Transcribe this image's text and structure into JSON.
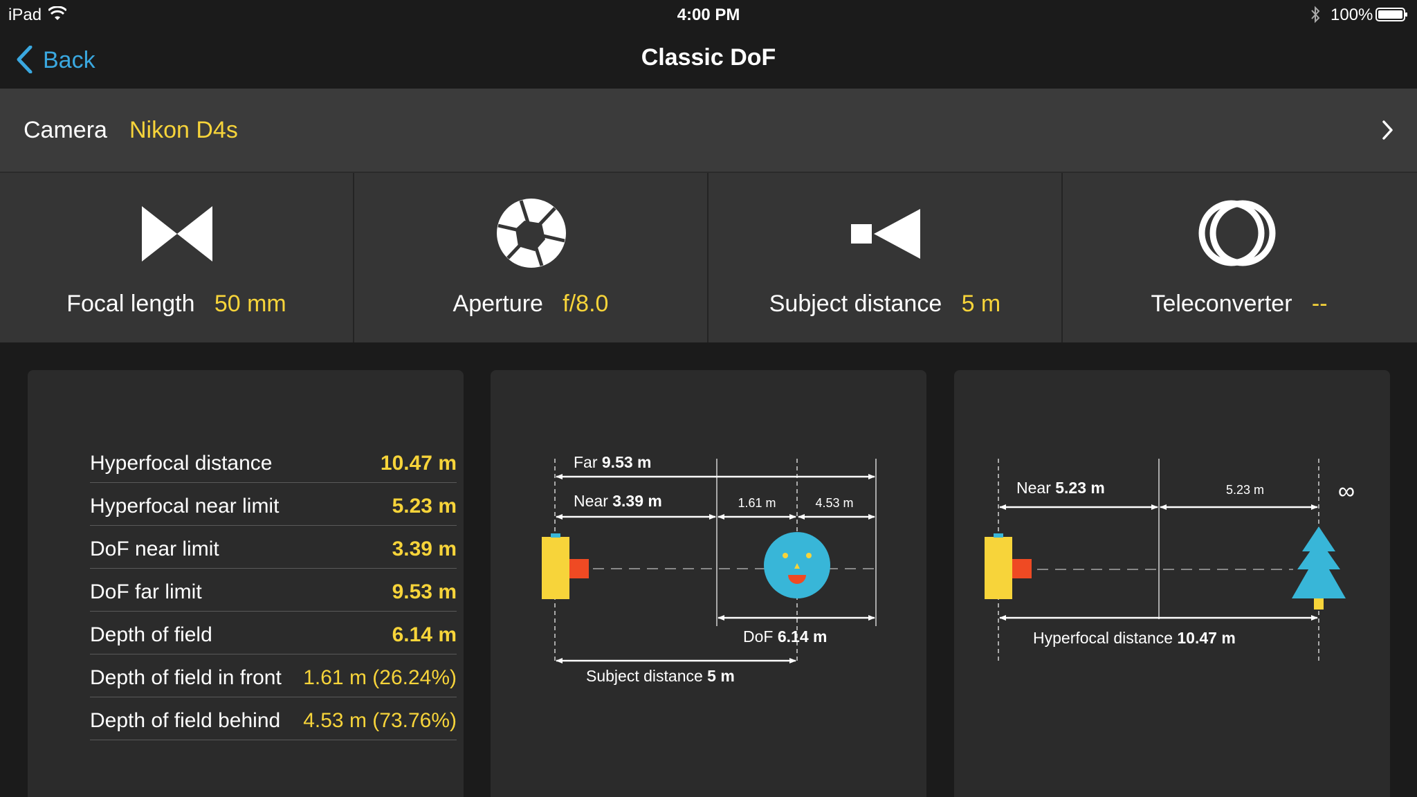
{
  "status_bar": {
    "device": "iPad",
    "time": "4:00 PM",
    "battery": "100%",
    "icons": [
      "wifi-icon",
      "bluetooth-icon",
      "battery-icon"
    ]
  },
  "nav": {
    "back_label": "Back",
    "title": "Classic DoF"
  },
  "camera": {
    "label": "Camera",
    "value": "Nikon D4s"
  },
  "params": [
    {
      "label": "Focal length",
      "value": "50 mm",
      "icon": "focal-length-icon"
    },
    {
      "label": "Aperture",
      "value": "f/8.0",
      "icon": "aperture-icon"
    },
    {
      "label": "Subject distance",
      "value": "5 m",
      "icon": "subject-distance-icon"
    },
    {
      "label": "Teleconverter",
      "value": "--",
      "icon": "teleconverter-icon"
    }
  ],
  "results": [
    {
      "label": "Hyperfocal distance",
      "value": "10.47 m"
    },
    {
      "label": "Hyperfocal near limit",
      "value": "5.23 m"
    },
    {
      "label": "DoF near limit",
      "value": "3.39 m"
    },
    {
      "label": "DoF far limit",
      "value": "9.53 m"
    },
    {
      "label": "Depth of field",
      "value": "6.14 m"
    },
    {
      "label": "Depth of field in front",
      "value": "1.61 m (26.24%)"
    },
    {
      "label": "Depth of field behind",
      "value": "4.53 m (73.76%)"
    }
  ],
  "dof_diagram": {
    "far_label": "Far",
    "far_value": "9.53 m",
    "near_label": "Near",
    "near_value": "3.39 m",
    "front": "1.61 m",
    "behind": "4.53 m",
    "dof_label": "DoF",
    "dof_value": "6.14 m",
    "subject_label": "Subject distance",
    "subject_value": "5 m"
  },
  "hyperfocal_diagram": {
    "near_label": "Near",
    "near_value": "5.23 m",
    "segment": "5.23 m",
    "infinity": "∞",
    "hf_label": "Hyperfocal distance",
    "hf_value": "10.47 m"
  },
  "colors": {
    "accent": "#f7d43a",
    "link": "#3aa8e0",
    "subject": "#38b6d8",
    "camera_body": "#f7d43a",
    "lens": "#ef4a23"
  }
}
